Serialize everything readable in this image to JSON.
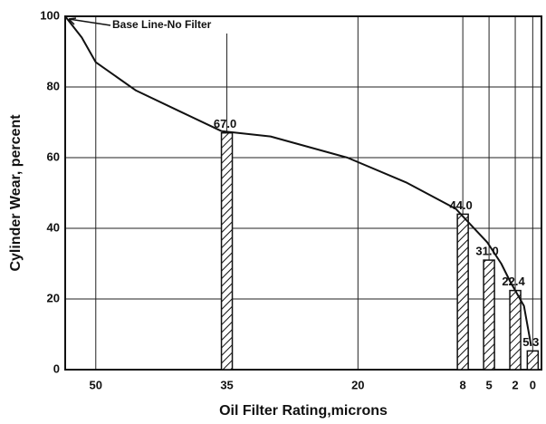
{
  "chart_data": {
    "type": "bar",
    "xlabel": "Oil Filter Rating,microns",
    "ylabel": "Cylinder Wear, percent",
    "annotation": "Base Line-No Filter",
    "x": [
      35,
      8,
      5,
      2,
      0
    ],
    "values": [
      67,
      44,
      31,
      22.4,
      5.3
    ],
    "value_labels": [
      "67.0",
      "44.0",
      "31.0",
      "22.4",
      "5.3"
    ],
    "curve": {
      "x": [
        53.5,
        51.6,
        50,
        45.4,
        40.3,
        35.6,
        30,
        21.2,
        14.5,
        8.8,
        5.2,
        3.6,
        2.6,
        1,
        0.2
      ],
      "values": [
        100,
        94,
        87,
        79,
        73,
        67.5,
        66,
        60,
        53,
        45.5,
        36,
        30,
        25,
        18,
        7
      ]
    },
    "xlim": [
      53.5,
      -1
    ],
    "xticks": [
      50,
      35,
      20,
      8,
      5,
      2,
      0
    ],
    "ylim": [
      0,
      100
    ],
    "yticks": [
      0,
      20,
      40,
      60,
      80,
      100
    ],
    "grid": true
  }
}
